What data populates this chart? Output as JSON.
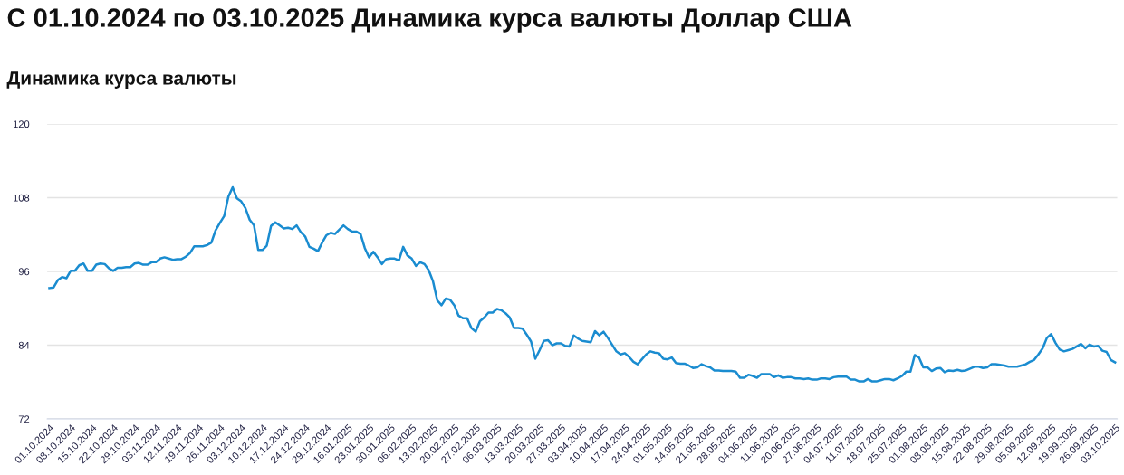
{
  "chart_data": {
    "type": "line",
    "title": "С 01.10.2024 по 03.10.2025 Динамика курса валюты Доллар США",
    "subtitle": "Динамика курса валюты",
    "categories": [
      "01.10.2024",
      null,
      null,
      null,
      null,
      "08.10.2024",
      null,
      null,
      null,
      null,
      "15.10.2024",
      null,
      null,
      null,
      null,
      "22.10.2024",
      null,
      null,
      null,
      null,
      "29.10.2024",
      null,
      null,
      null,
      null,
      "03.11.2024",
      null,
      null,
      null,
      null,
      "12.11.2024",
      null,
      null,
      null,
      null,
      "19.11.2024",
      null,
      null,
      null,
      null,
      "26.11.2024",
      null,
      null,
      null,
      null,
      "03.12.2024",
      null,
      null,
      null,
      null,
      "10.12.2024",
      null,
      null,
      null,
      null,
      "17.12.2024",
      null,
      null,
      null,
      null,
      "24.12.2024",
      null,
      null,
      null,
      null,
      "29.12.2024",
      null,
      null,
      null,
      null,
      "16.01.2025",
      null,
      null,
      null,
      null,
      "23.01.2025",
      null,
      null,
      null,
      null,
      "30.01.2025",
      null,
      null,
      null,
      null,
      "06.02.2025",
      null,
      null,
      null,
      null,
      "13.02.2025",
      null,
      null,
      null,
      null,
      "20.02.2025",
      null,
      null,
      null,
      null,
      "27.02.2025",
      null,
      null,
      null,
      null,
      "06.03.2025",
      null,
      null,
      null,
      null,
      "13.03.2025",
      null,
      null,
      null,
      null,
      "20.03.2025",
      null,
      null,
      null,
      null,
      "27.03.2025",
      null,
      null,
      null,
      null,
      "03.04.2025",
      null,
      null,
      null,
      null,
      "10.04.2025",
      null,
      null,
      null,
      null,
      "17.04.2025",
      null,
      null,
      null,
      null,
      "24.04.2025",
      null,
      null,
      null,
      null,
      "01.05.2025",
      null,
      null,
      null,
      null,
      "14.05.2025",
      null,
      null,
      null,
      null,
      "21.05.2025",
      null,
      null,
      null,
      null,
      "28.05.2025",
      null,
      null,
      null,
      null,
      "04.06.2025",
      null,
      null,
      null,
      null,
      "11.06.2025",
      null,
      null,
      null,
      null,
      "20.06.2025",
      null,
      null,
      null,
      null,
      "27.06.2025",
      null,
      null,
      null,
      null,
      "04.07.2025",
      null,
      null,
      null,
      null,
      "11.07.2025",
      null,
      null,
      null,
      null,
      "18.07.2025",
      null,
      null,
      null,
      null,
      "25.07.2025",
      null,
      null,
      null,
      null,
      "01.08.2025",
      null,
      null,
      null,
      null,
      "08.08.2025",
      null,
      null,
      null,
      null,
      "15.08.2025",
      null,
      null,
      null,
      null,
      "22.08.2025",
      null,
      null,
      null,
      null,
      "29.08.2025",
      null,
      null,
      null,
      null,
      "05.09.2025",
      null,
      null,
      null,
      null,
      "12.09.2025",
      null,
      null,
      null,
      null,
      "19.09.2025",
      null,
      null,
      null,
      null,
      "26.09.2025",
      null,
      null,
      null,
      null,
      "03.10.2025"
    ],
    "series": [
      {
        "color": "#1a8cd0",
        "values": [
          93.3,
          93.4,
          94.6,
          95.1,
          94.9,
          96.1,
          96.1,
          97.0,
          97.3,
          96.1,
          96.1,
          97.1,
          97.3,
          97.2,
          96.5,
          96.1,
          96.6,
          96.6,
          96.7,
          96.7,
          97.3,
          97.4,
          97.1,
          97.1,
          97.5,
          97.5,
          98.1,
          98.3,
          98.1,
          97.9,
          98.0,
          98.0,
          98.4,
          99.0,
          100.1,
          100.1,
          100.1,
          100.3,
          100.7,
          102.7,
          103.9,
          105.0,
          108.2,
          109.7,
          107.9,
          107.4,
          106.3,
          104.4,
          103.5,
          99.5,
          99.5,
          100.2,
          103.4,
          104.0,
          103.5,
          103.0,
          103.1,
          102.9,
          103.5,
          102.4,
          101.7,
          100.0,
          99.7,
          99.3,
          100.7,
          101.9,
          102.3,
          102.1,
          102.8,
          103.5,
          102.9,
          102.5,
          102.5,
          102.1,
          99.8,
          98.3,
          99.2,
          98.3,
          97.2,
          98.0,
          98.1,
          98.1,
          97.8,
          100.0,
          98.6,
          98.1,
          96.9,
          97.5,
          97.2,
          96.2,
          94.4,
          91.3,
          90.5,
          91.6,
          91.4,
          90.5,
          88.8,
          88.4,
          88.4,
          86.8,
          86.2,
          87.9,
          88.5,
          89.3,
          89.3,
          89.9,
          89.7,
          89.2,
          88.5,
          86.8,
          86.8,
          86.7,
          85.7,
          84.6,
          81.8,
          83.2,
          84.7,
          84.8,
          84.0,
          84.3,
          84.3,
          83.9,
          83.8,
          85.6,
          85.1,
          84.7,
          84.6,
          84.5,
          86.3,
          85.6,
          86.2,
          85.2,
          84.1,
          83.0,
          82.5,
          82.7,
          82.1,
          81.3,
          80.9,
          81.7,
          82.5,
          83.0,
          82.8,
          82.7,
          81.8,
          81.7,
          82.0,
          81.1,
          81.0,
          81.0,
          80.7,
          80.3,
          80.4,
          80.9,
          80.6,
          80.4,
          79.9,
          79.9,
          79.8,
          79.8,
          79.8,
          79.7,
          78.7,
          78.7,
          79.2,
          79.0,
          78.7,
          79.3,
          79.3,
          79.3,
          78.8,
          79.1,
          78.7,
          78.8,
          78.8,
          78.6,
          78.6,
          78.5,
          78.6,
          78.4,
          78.4,
          78.6,
          78.6,
          78.5,
          78.8,
          78.9,
          78.9,
          78.9,
          78.4,
          78.4,
          78.1,
          78.1,
          78.5,
          78.1,
          78.1,
          78.3,
          78.5,
          78.5,
          78.3,
          78.6,
          79.0,
          79.7,
          79.7,
          82.4,
          82.0,
          80.4,
          80.4,
          79.8,
          80.2,
          80.3,
          79.6,
          79.9,
          79.8,
          80.0,
          79.8,
          79.9,
          80.2,
          80.5,
          80.5,
          80.3,
          80.4,
          80.9,
          80.9,
          80.8,
          80.7,
          80.5,
          80.5,
          80.5,
          80.7,
          80.9,
          81.3,
          81.6,
          82.5,
          83.5,
          85.2,
          85.8,
          84.4,
          83.3,
          83.0,
          83.2,
          83.4,
          83.8,
          84.2,
          83.5,
          84.1,
          83.8,
          83.9,
          83.1,
          82.9,
          81.6,
          81.2
        ]
      }
    ],
    "ylim": [
      72,
      120
    ],
    "yticks": [
      72,
      84,
      96,
      108,
      120
    ],
    "grid": "y",
    "marker": "none",
    "line_style": "solid"
  }
}
